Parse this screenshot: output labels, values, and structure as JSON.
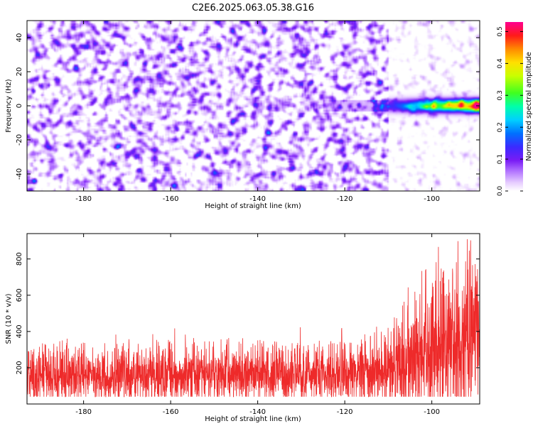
{
  "page": {
    "title": "C2E6.2025.063.05.38.G16"
  },
  "colors": {
    "snr_line": "#ee2a2a",
    "spectrogram_cmap": [
      "#ffffff",
      "#d9b3ff",
      "#a040ff",
      "#6a0ef0",
      "#2a2aff",
      "#00c8ff",
      "#00ff9a",
      "#8cff00",
      "#ffff00",
      "#ff9a00",
      "#ff0000",
      "#ff0090"
    ]
  },
  "chart_data": [
    {
      "type": "heatmap",
      "name": "spectrogram",
      "title": "C2E6.2025.063.05.38.G16",
      "xlabel": "Height of straight line (km)",
      "ylabel": "Frequency (Hz)",
      "xlim": [
        -193,
        -89
      ],
      "ylim": [
        -50,
        50
      ],
      "xticks": [
        -180,
        -160,
        -140,
        -120,
        -100
      ],
      "yticks": [
        -40,
        -20,
        0,
        20,
        40
      ],
      "colorbar": {
        "label": "Normalized spectral amplitude",
        "range": [
          0.0,
          0.53
        ],
        "ticks": [
          0.0,
          0.1,
          0.2,
          0.3,
          0.4,
          0.5
        ],
        "tick_labels": [
          "0.0",
          "0.1",
          "0.2",
          "0.3",
          "0.4",
          "0.5"
        ]
      },
      "features": {
        "noise_region_x": [
          -193,
          -110
        ],
        "noise_level": 0.06,
        "signal_band_x": [
          -110,
          -89
        ],
        "signal_center_hz": 0,
        "signal_peak": 0.5
      }
    },
    {
      "type": "line",
      "name": "snr",
      "xlabel": "Height of straight line (km)",
      "ylabel": "SNR (10 * v/v)",
      "xlim": [
        -193,
        -89
      ],
      "ylim": [
        0,
        940
      ],
      "xticks": [
        -180,
        -160,
        -140,
        -120,
        -100
      ],
      "yticks": [
        200,
        400,
        600,
        800
      ],
      "envelope": {
        "x": [
          -193,
          -180,
          -170,
          -160,
          -150,
          -140,
          -130,
          -120,
          -115,
          -110,
          -108,
          -106,
          -104,
          -102,
          -100,
          -98,
          -96,
          -94,
          -92,
          -90,
          -89
        ],
        "upper": [
          330,
          330,
          335,
          340,
          345,
          345,
          350,
          360,
          380,
          430,
          520,
          600,
          660,
          740,
          780,
          800,
          820,
          850,
          880,
          900,
          900
        ],
        "lower": [
          40,
          40,
          40,
          40,
          40,
          40,
          40,
          40,
          40,
          40,
          40,
          40,
          40,
          40,
          40,
          40,
          40,
          40,
          40,
          40,
          40
        ],
        "median": [
          150,
          150,
          152,
          155,
          158,
          158,
          160,
          165,
          175,
          200,
          230,
          260,
          280,
          300,
          320,
          330,
          340,
          350,
          360,
          370,
          370
        ]
      }
    }
  ]
}
